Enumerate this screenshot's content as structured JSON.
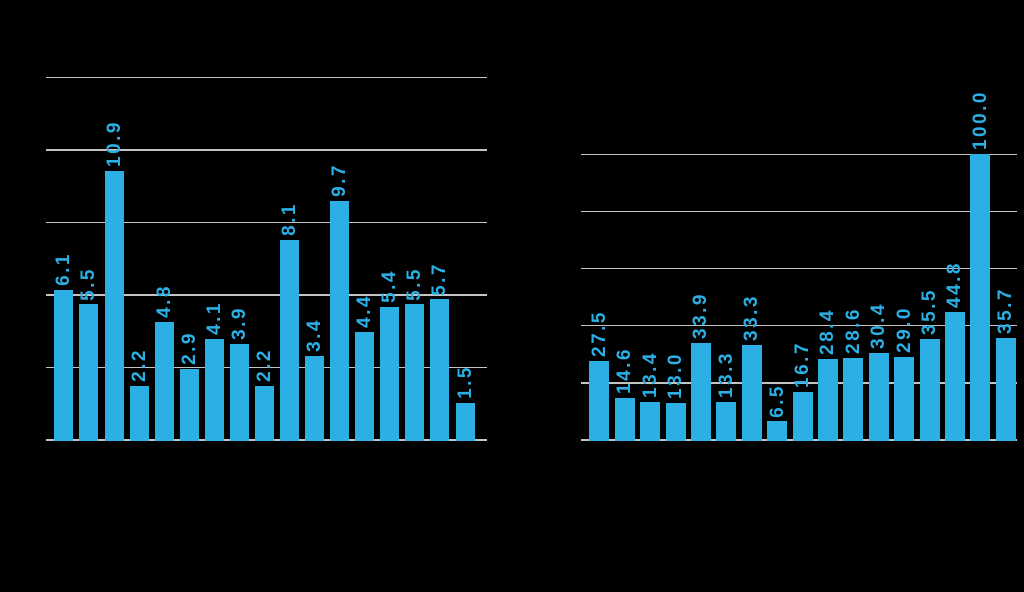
{
  "style": {
    "background_color": "#000000",
    "bar_color": "#2BAFE4",
    "data_label_color": "#2BAFE4",
    "gridline_color": "#C4C4C4"
  },
  "chart_data": [
    {
      "id": "left-chart",
      "type": "bar",
      "title": "",
      "categories": [],
      "values": [
        6.1,
        5.5,
        10.9,
        2.2,
        4.8,
        2.9,
        4.1,
        3.9,
        2.2,
        8.1,
        3.4,
        9.7,
        4.4,
        5.4,
        5.5,
        5.7,
        1.5
      ],
      "data_labels": [
        "6.1",
        "5.5",
        "10.9",
        "2.2",
        "4.8",
        "2.9",
        "4.1",
        "3.9",
        "2.2",
        "8.1",
        "3.4",
        "9.7",
        "4.4",
        "5.4",
        "5.5",
        "5.7",
        "1.5"
      ],
      "ylim": [
        0,
        15
      ],
      "gridlines": {
        "count": 6,
        "horizontal": true
      },
      "legend": "none",
      "data_label_rotation_degrees": 90
    },
    {
      "id": "right-chart",
      "type": "bar",
      "title": "",
      "categories": [],
      "values": [
        27.5,
        14.6,
        13.4,
        13.0,
        33.9,
        13.3,
        33.3,
        6.5,
        16.7,
        28.4,
        28.6,
        30.4,
        29.0,
        35.5,
        44.8,
        100.0,
        35.7
      ],
      "data_labels": [
        "27.5",
        "14.6",
        "13.4",
        "13.0",
        "33.9",
        "13.3",
        "33.3",
        "6.5",
        "16.7",
        "28.4",
        "28.6",
        "30.4",
        "29.0",
        "35.5",
        "44.8",
        "100.0",
        "35.7"
      ],
      "ylim": [
        0,
        100
      ],
      "gridlines": {
        "count": 6,
        "interval": 20,
        "horizontal": true
      },
      "legend": "none",
      "data_label_rotation_degrees": 90
    }
  ]
}
